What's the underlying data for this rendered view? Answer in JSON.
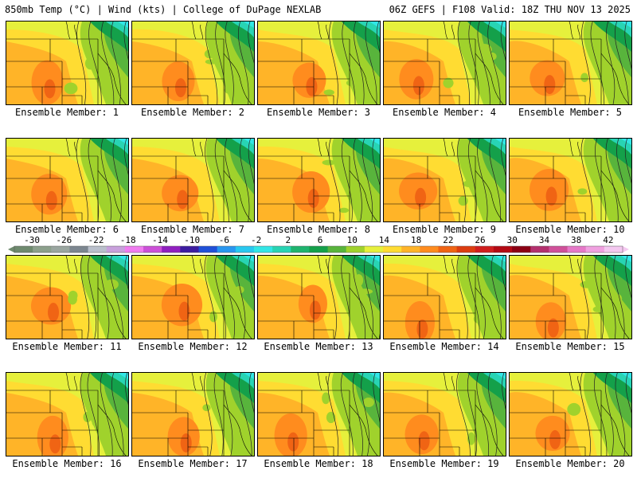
{
  "header": {
    "left": "850mb Temp (°C) | Wind (kts) | College of DuPage NEXLAB",
    "right": "06Z GEFS | F108 Valid: 18Z THU NOV 13 2025"
  },
  "legend": {
    "ticks": [
      "-30",
      "-26",
      "-22",
      "-18",
      "-14",
      "-10",
      "-6",
      "-2",
      "2",
      "6",
      "10",
      "14",
      "18",
      "22",
      "26",
      "30",
      "34",
      "38",
      "42"
    ],
    "colors": [
      "#6e8a6e",
      "#8ca08c",
      "#9aa6a0",
      "#7c8690",
      "#bac0cc",
      "#c8a0dc",
      "#f07cf0",
      "#cc50d8",
      "#9020c0",
      "#3c1ca0",
      "#2050d8",
      "#2896f0",
      "#28c8f0",
      "#32e6e6",
      "#28d4b4",
      "#1eb46e",
      "#14a04a",
      "#58b43c",
      "#a0d22c",
      "#e6f03c",
      "#ffdc32",
      "#ffb428",
      "#ff8c1e",
      "#f06414",
      "#dc3c10",
      "#d01e1e",
      "#b40a14",
      "#8c0014",
      "#b4306e",
      "#d0509a",
      "#e678c8",
      "#f0a0e0",
      "#f4c8f0"
    ]
  },
  "panels": [
    {
      "label": "Ensemble Member: 1"
    },
    {
      "label": "Ensemble Member: 2"
    },
    {
      "label": "Ensemble Member: 3"
    },
    {
      "label": "Ensemble Member: 4"
    },
    {
      "label": "Ensemble Member: 5"
    },
    {
      "label": "Ensemble Member: 6"
    },
    {
      "label": "Ensemble Member: 7"
    },
    {
      "label": "Ensemble Member: 8"
    },
    {
      "label": "Ensemble Member: 9"
    },
    {
      "label": "Ensemble Member: 10"
    },
    {
      "label": "Ensemble Member: 11"
    },
    {
      "label": "Ensemble Member: 12"
    },
    {
      "label": "Ensemble Member: 13"
    },
    {
      "label": "Ensemble Member: 14"
    },
    {
      "label": "Ensemble Member: 15"
    },
    {
      "label": "Ensemble Member: 16"
    },
    {
      "label": "Ensemble Member: 17"
    },
    {
      "label": "Ensemble Member: 18"
    },
    {
      "label": "Ensemble Member: 19"
    },
    {
      "label": "Ensemble Member: 20"
    }
  ]
}
